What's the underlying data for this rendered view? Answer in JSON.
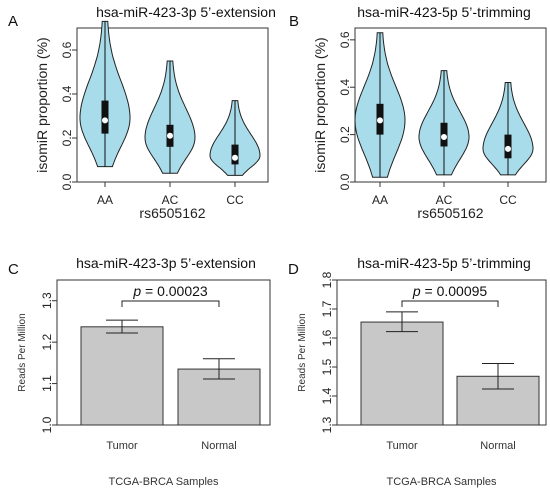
{
  "chart_data": [
    {
      "panel": "A",
      "type": "violin",
      "title": "hsa-miR-423-3p 5’-extension",
      "xlabel": "rs6505162",
      "ylabel": "isomiR proportion (%)",
      "ylim": [
        0,
        0.7
      ],
      "yticks": [
        "0.0",
        "0.2",
        "0.4",
        "0.6"
      ],
      "categories": [
        "AA",
        "AC",
        "CC"
      ],
      "fill_color": "#a8dcea",
      "min": [
        0.07,
        0.04,
        0.03
      ],
      "q1": [
        0.22,
        0.16,
        0.08
      ],
      "median": [
        0.28,
        0.21,
        0.11
      ],
      "q3": [
        0.37,
        0.26,
        0.17
      ],
      "max": [
        0.73,
        0.55,
        0.37
      ],
      "mode": [
        0.29,
        0.2,
        0.12
      ]
    },
    {
      "panel": "B",
      "type": "violin",
      "title": "hsa-miR-423-5p 5’-trimming",
      "xlabel": "rs6505162",
      "ylabel": "isomiR proportion (%)",
      "ylim": [
        0,
        0.65
      ],
      "yticks": [
        "0.0",
        "0.2",
        "0.4",
        "0.6"
      ],
      "categories": [
        "AA",
        "AC",
        "CC"
      ],
      "fill_color": "#a8dcea",
      "min": [
        0.02,
        0.03,
        0.03
      ],
      "q1": [
        0.2,
        0.15,
        0.1
      ],
      "median": [
        0.26,
        0.19,
        0.14
      ],
      "q3": [
        0.33,
        0.25,
        0.2
      ],
      "max": [
        0.63,
        0.47,
        0.42
      ],
      "mode": [
        0.26,
        0.19,
        0.14
      ]
    },
    {
      "panel": "C",
      "type": "bar",
      "title": "hsa-miR-423-3p 5’-extension",
      "xlabel": "TCGA-BRCA Samples",
      "ylabel": "Reads Per Million",
      "ylim": [
        1.0,
        1.35
      ],
      "yticks": [
        "1.0",
        "1.1",
        "1.2",
        "1.3"
      ],
      "categories": [
        "Tumor",
        "Normal"
      ],
      "values": [
        1.237,
        1.135
      ],
      "error_low": [
        1.222,
        1.111
      ],
      "error_high": [
        1.253,
        1.16
      ],
      "bar_color": "#c8c8c8",
      "p_label": "p",
      "p_value": "= 0.00023"
    },
    {
      "panel": "D",
      "type": "bar",
      "title": "hsa-miR-423-5p 5’-trimming",
      "xlabel": "TCGA-BRCA Samples",
      "ylabel": "Reads Per Million",
      "ylim": [
        1.3,
        1.8
      ],
      "yticks": [
        "1.3",
        "1.4",
        "1.5",
        "1.6",
        "1.7",
        "1.8"
      ],
      "categories": [
        "Tumor",
        "Normal"
      ],
      "values": [
        1.655,
        1.468
      ],
      "error_low": [
        1.622,
        1.424
      ],
      "error_high": [
        1.69,
        1.512
      ],
      "bar_color": "#c8c8c8",
      "p_label": "p",
      "p_value": "= 0.00095"
    }
  ]
}
